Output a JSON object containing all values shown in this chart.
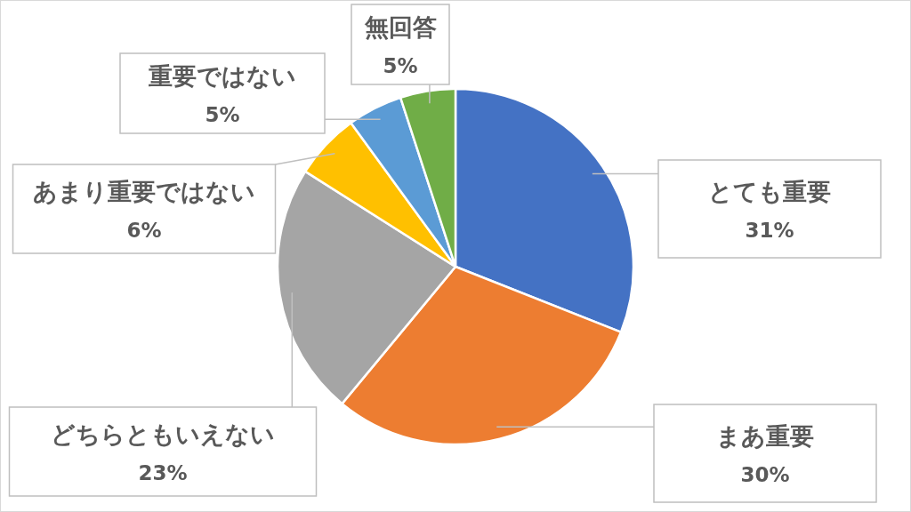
{
  "chart_data": {
    "type": "pie",
    "categories": [
      "とても重要",
      "まあ重要",
      "どちらともいえない",
      "あまり重要ではない",
      "重要ではない",
      "無回答"
    ],
    "values": [
      31,
      30,
      23,
      6,
      5,
      5
    ],
    "colors": [
      "#4472c4",
      "#ed7d31",
      "#a5a5a5",
      "#ffc000",
      "#5b9bd5",
      "#70ad47"
    ],
    "value_labels": [
      "31%",
      "30%",
      "23%",
      "6%",
      "5%",
      "5%"
    ]
  }
}
